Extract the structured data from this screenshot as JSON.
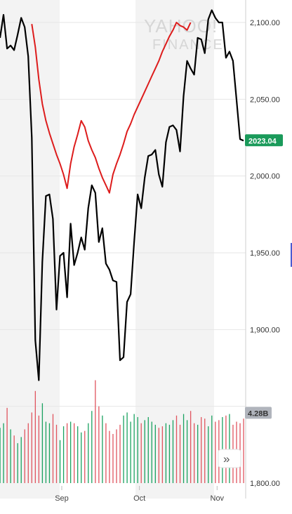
{
  "chart_data": {
    "type": "line",
    "ylim": [
      1800,
      2110
    ],
    "y_ticks": [
      "2,100.00",
      "2,050.00",
      "2,000.00",
      "1,950.00",
      "1,900.00",
      "1,800.00"
    ],
    "y_tick_values": [
      2100,
      2050,
      2000,
      1950,
      1900,
      1800
    ],
    "x_ticks": [
      "Sep",
      "Oct",
      "Nov"
    ],
    "x_tick_positions": [
      17.5,
      39.5,
      61.5
    ],
    "x_range": [
      0,
      69
    ],
    "last_price_label": "2023.04",
    "last_price": 2023.04,
    "volume_label": "4.28B",
    "volume_label_level": 1846,
    "scroll_button": "»",
    "series": [
      {
        "color": "#000000",
        "x": [
          0,
          1,
          2,
          3,
          4,
          5,
          6,
          7,
          8,
          9,
          10,
          11,
          12,
          13,
          14,
          15,
          16,
          17,
          18,
          19,
          20,
          21,
          22,
          23,
          24,
          25,
          26,
          27,
          28,
          29,
          30,
          31,
          32,
          33,
          34,
          35,
          36,
          37,
          38,
          39,
          40,
          41,
          42,
          43,
          44,
          45,
          46,
          47,
          48,
          49,
          50,
          51,
          52,
          53,
          54,
          55,
          56,
          57,
          58,
          59,
          60,
          61,
          62,
          63,
          64,
          65,
          66,
          67,
          68,
          69
        ],
        "values": [
          2090,
          2105,
          2083,
          2085,
          2082,
          2092,
          2103,
          2097,
          2078,
          2025,
          1893,
          1867,
          1944,
          1987,
          1988,
          1972,
          1913,
          1948,
          1950,
          1921,
          1969,
          1942,
          1950,
          1960,
          1952,
          1979,
          1994,
          1989,
          1957,
          1966,
          1943,
          1939,
          1932,
          1931,
          1880,
          1882,
          1918,
          1923,
          1957,
          1988,
          1979,
          1999,
          2013,
          2014,
          2017,
          2001,
          1993,
          2022,
          2032,
          2033,
          2030,
          2016,
          2052,
          2075,
          2070,
          2066,
          2090,
          2089,
          2080,
          2102,
          2108,
          2103,
          2100,
          2100,
          2077,
          2081,
          2075,
          2050,
          2024,
          2023.04
        ]
      },
      {
        "color": "#dd1c1c",
        "x": [
          9,
          10,
          11,
          12,
          13,
          14,
          15,
          16,
          17,
          18,
          19,
          20,
          21,
          22,
          23,
          24,
          25,
          26,
          27,
          28,
          29,
          30,
          31,
          32,
          33,
          34,
          35,
          36,
          37,
          38,
          39,
          40,
          41,
          42,
          43,
          44,
          45,
          46,
          47,
          48,
          49,
          50,
          51,
          52,
          53,
          54
        ],
        "values": [
          2099,
          2084,
          2063,
          2047,
          2036,
          2028,
          2021,
          2014,
          2008,
          2001,
          1992,
          2008,
          2019,
          2027,
          2036,
          2032,
          2023,
          2017,
          2012,
          2005,
          1999,
          1994,
          1989,
          2001,
          2008,
          2014,
          2021,
          2029,
          2034,
          2040,
          2045,
          2050,
          2055,
          2060,
          2065,
          2070,
          2075,
          2081,
          2086,
          2091,
          2095,
          2100,
          2098,
          2097,
          2095,
          2100
        ]
      }
    ],
    "volume": [
      1836,
      1839,
      1849,
      1835,
      1831,
      1826,
      1830,
      1835,
      1839,
      1846,
      1860,
      1844,
      1852,
      1840,
      1839,
      1845,
      1838,
      1828,
      1837,
      1839,
      1840,
      1839,
      1837,
      1833,
      1834,
      1839,
      1847,
      1867,
      1850,
      1844,
      1839,
      1834,
      1832,
      1835,
      1838,
      1844,
      1846,
      1840,
      1845,
      1843,
      1839,
      1841,
      1843,
      1840,
      1838,
      1836,
      1837,
      1839,
      1838,
      1841,
      1844,
      1838,
      1845,
      1841,
      1847,
      1839,
      1838,
      1843,
      1842,
      1837,
      1844,
      1840,
      1841,
      1843,
      1844,
      1845,
      1838,
      1840,
      1839,
      1842
    ]
  },
  "watermark": {
    "line1": "YAHOO!",
    "line2": "FINANCE"
  },
  "colors": {
    "up": "#1aa260",
    "down": "#e0555f",
    "badge_price": "#1a9a5a",
    "badge_volume": "#b0b4bc",
    "shade": "#f3f3f3"
  }
}
